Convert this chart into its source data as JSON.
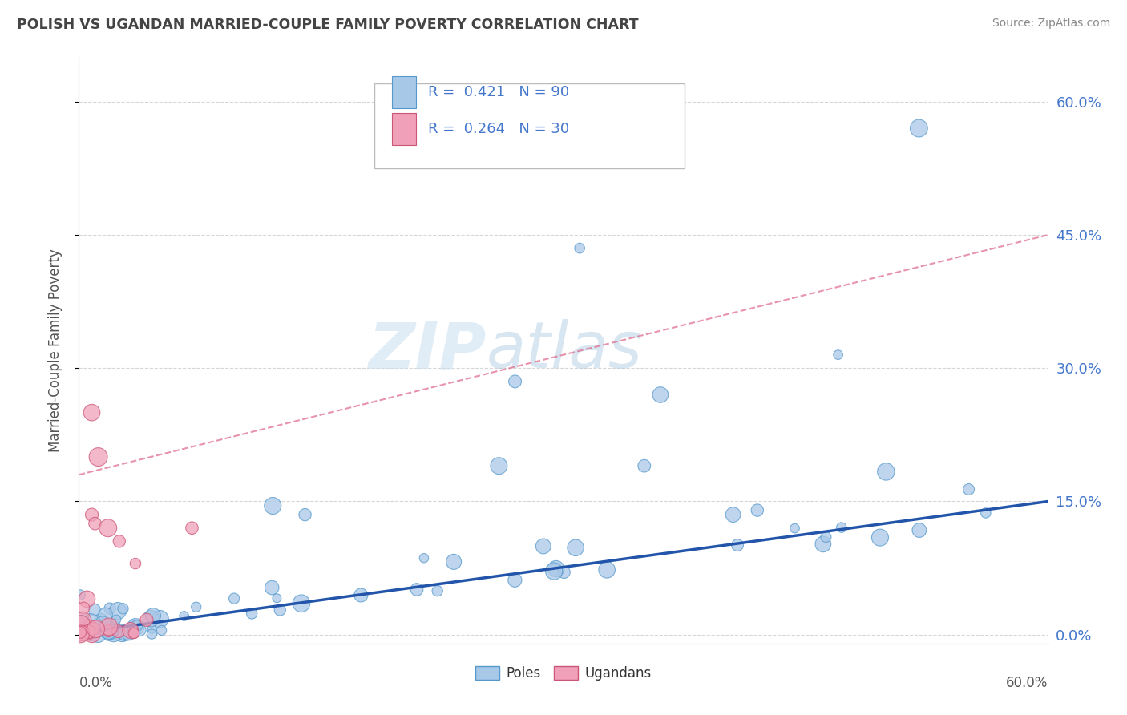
{
  "title": "POLISH VS UGANDAN MARRIED-COUPLE FAMILY POVERTY CORRELATION CHART",
  "source": "Source: ZipAtlas.com",
  "ylabel": "Married-Couple Family Poverty",
  "yticks_labels": [
    "0.0%",
    "15.0%",
    "30.0%",
    "45.0%",
    "60.0%"
  ],
  "ytick_vals": [
    0,
    15,
    30,
    45,
    60
  ],
  "xlim": [
    0,
    60
  ],
  "ylim": [
    -1,
    65
  ],
  "watermark_zip": "ZIP",
  "watermark_atlas": "atlas",
  "poles_color": "#a8c8e8",
  "poles_edge_color": "#5599cc",
  "ugandans_color": "#f0a0b8",
  "ugandans_edge_color": "#cc5577",
  "trendline_poles_color": "#2255aa",
  "trendline_ugandans_color": "#dd6688",
  "legend_r_poles": "R =  0.421",
  "legend_n_poles": "N = 90",
  "legend_r_ugandans": "R =  0.264",
  "legend_n_ugandans": "N = 30",
  "poles_trend_x": [
    0,
    60
  ],
  "poles_trend_y": [
    0.2,
    15.0
  ],
  "ugandans_trend_x": [
    0,
    60
  ],
  "ugandans_trend_y": [
    18.0,
    45.0
  ],
  "grid_color": "#cccccc",
  "spine_color": "#aaaaaa",
  "tick_label_color": "#4477cc",
  "title_color": "#444444",
  "source_color": "#888888"
}
